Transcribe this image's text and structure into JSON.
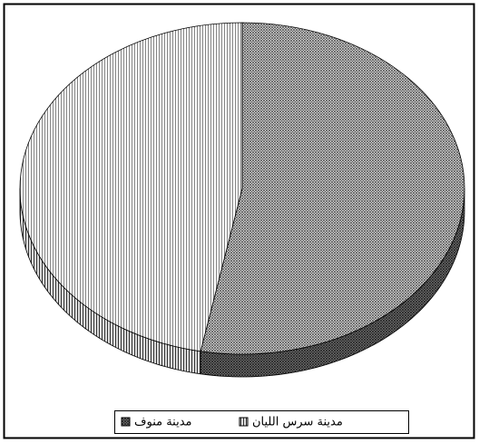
{
  "chart_data": {
    "type": "pie",
    "categories": [
      "مدينة منوف",
      "مدينة سرس الليان"
    ],
    "values": [
      53,
      47
    ],
    "colors": [
      "#555555",
      "#bbbbbb"
    ],
    "legend": "bottom"
  }
}
